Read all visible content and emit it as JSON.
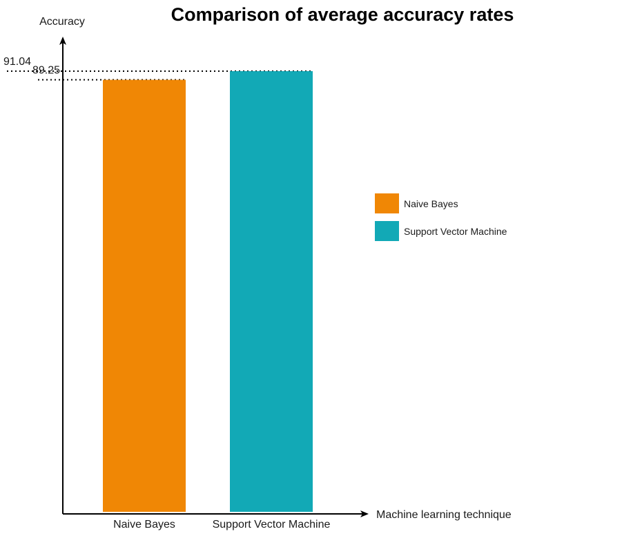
{
  "chart_data": {
    "type": "bar",
    "title": "Comparison of average accuracy rates",
    "xlabel": "Machine learning technique",
    "ylabel": "Accuracy",
    "categories": [
      "Naive Bayes",
      "Support Vector Machine"
    ],
    "values": [
      89.25,
      91.04
    ],
    "value_labels": [
      "89.25",
      "91.04"
    ],
    "colors": [
      "#F08705",
      "#12A9B6"
    ],
    "ylim": [
      0,
      91.04
    ],
    "grid": false,
    "reference_lines": "dotted",
    "legend": {
      "placement": "right",
      "entries": [
        {
          "label": "Naive Bayes",
          "color": "#F08705"
        },
        {
          "label": "Support Vector Machine",
          "color": "#12A9B6"
        }
      ]
    }
  }
}
